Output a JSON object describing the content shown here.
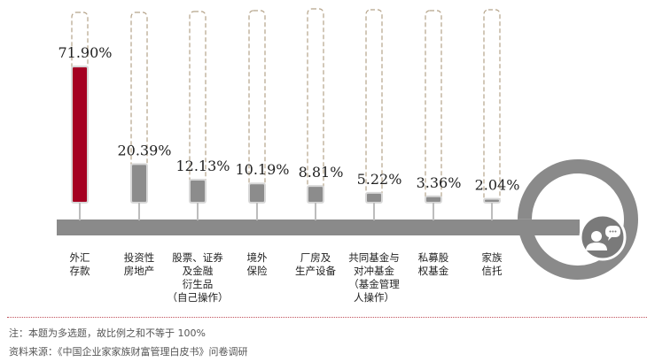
{
  "chart_data": {
    "type": "bar",
    "categories": [
      "外汇\n存款",
      "投资性\n房地产",
      "股票、证券\n及金融\n衍生品\n（自己操作）",
      "境外\n保险",
      "厂房及\n生产设备",
      "共同基金与\n对冲基金\n（基金管理\n人操作）",
      "私募股\n权基金",
      "家族\n信托"
    ],
    "values": [
      71.9,
      20.39,
      12.13,
      10.19,
      8.81,
      5.22,
      3.36,
      2.04
    ],
    "value_labels": [
      "71.90%",
      "20.39%",
      "12.13%",
      "10.19%",
      "8.81%",
      "5.22%",
      "3.36%",
      "2.04%"
    ],
    "ylim": [
      0,
      100
    ],
    "title": "",
    "xlabel": "",
    "ylabel": "",
    "grid": false,
    "colors": {
      "highlight": "#a50021",
      "bar": "#8c8c8c",
      "outline": "#b5a48a",
      "baseline": "#8a8a8a",
      "icon_circle": "#7a7a7a"
    }
  },
  "icon": "people-chat-icon",
  "footer": {
    "note": "注：本题为多选题，故比例之和不等于 100%",
    "source": "资料来源：《中国企业家家族财富管理白皮书》问卷调研"
  }
}
